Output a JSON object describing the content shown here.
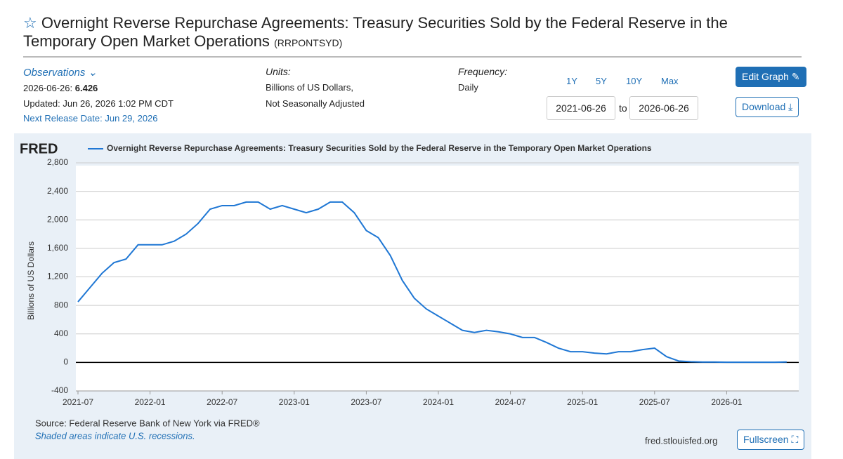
{
  "header": {
    "title": "Overnight Reverse Repurchase Agreements: Treasury Securities Sold by the Federal Reserve in the Temporary Open Market Operations",
    "series_id": "(RRPONTSYD)",
    "observations_label": "Observations",
    "obs_date": "2026-06-26:",
    "obs_value": "6.426",
    "updated": "Updated: Jun 26, 2026 1:02 PM CDT",
    "next_release": "Next Release Date: Jun 29, 2026",
    "units_label": "Units:",
    "units_1": "Billions of US Dollars,",
    "units_2": "Not Seasonally Adjusted",
    "frequency_label": "Frequency:",
    "frequency": "Daily",
    "ranges": [
      "1Y",
      "5Y",
      "10Y",
      "Max"
    ],
    "date_from": "2021-06-26",
    "date_to_label": "to",
    "date_to": "2026-06-26",
    "edit_graph": "Edit Graph",
    "download": "Download"
  },
  "footer": {
    "logo": "FRED",
    "source": "Source: Federal Reserve Bank of New York via FRED®",
    "shaded": "Shaded areas indicate U.S. recessions.",
    "site": "fred.stlouisfed.org",
    "fullscreen": "Fullscreen"
  },
  "chart_data": {
    "type": "line",
    "ylabel": "Billions of US Dollars",
    "x": [
      "2021-07",
      "2021-08",
      "2021-09",
      "2021-10",
      "2021-11",
      "2021-12",
      "2022-01",
      "2022-02",
      "2022-03",
      "2022-04",
      "2022-05",
      "2022-06",
      "2022-07",
      "2022-08",
      "2022-09",
      "2022-10",
      "2022-11",
      "2022-12",
      "2023-01",
      "2023-02",
      "2023-03",
      "2023-04",
      "2023-05",
      "2023-06",
      "2023-07",
      "2023-08",
      "2023-09",
      "2023-10",
      "2023-11",
      "2023-12",
      "2024-01",
      "2024-02",
      "2024-03",
      "2024-04",
      "2024-05",
      "2024-06",
      "2024-07",
      "2024-08",
      "2024-09",
      "2024-10",
      "2024-11",
      "2024-12",
      "2025-01",
      "2025-02",
      "2025-03",
      "2025-04",
      "2025-05",
      "2025-06",
      "2025-07",
      "2025-08",
      "2025-09",
      "2025-10",
      "2025-11",
      "2025-12",
      "2026-01",
      "2026-02",
      "2026-03",
      "2026-04",
      "2026-05",
      "2026-06"
    ],
    "series": [
      {
        "name": "Overnight Reverse Repurchase Agreements: Treasury Securities Sold by the Federal Reserve in the Temporary Open Market Operations",
        "color": "#1f77d4",
        "values": [
          850,
          1050,
          1250,
          1400,
          1450,
          1650,
          1650,
          1650,
          1700,
          1800,
          1950,
          2150,
          2200,
          2200,
          2250,
          2250,
          2150,
          2200,
          2150,
          2100,
          2150,
          2250,
          2250,
          2100,
          1850,
          1750,
          1500,
          1150,
          900,
          750,
          650,
          550,
          450,
          420,
          450,
          430,
          400,
          350,
          350,
          280,
          200,
          150,
          150,
          130,
          120,
          150,
          150,
          180,
          200,
          80,
          20,
          10,
          5,
          5,
          3,
          3,
          3,
          3,
          3,
          6.426
        ]
      }
    ],
    "xlim": [
      "2021-07",
      "2026-07"
    ],
    "xticks": [
      "2021-07",
      "2022-01",
      "2022-07",
      "2023-01",
      "2023-07",
      "2024-01",
      "2024-07",
      "2025-01",
      "2025-07",
      "2026-01"
    ],
    "ylim": [
      -400,
      2800
    ],
    "yticks": [
      -400,
      0,
      400,
      800,
      {
        "value": 1200,
        "label": "1,200"
      },
      {
        "value": 1600,
        "label": "1,600"
      },
      {
        "value": 2000,
        "label": "2,000"
      },
      {
        "value": 2400,
        "label": "2,400"
      },
      {
        "value": 2800,
        "label": "2,800"
      }
    ],
    "grid": true
  }
}
